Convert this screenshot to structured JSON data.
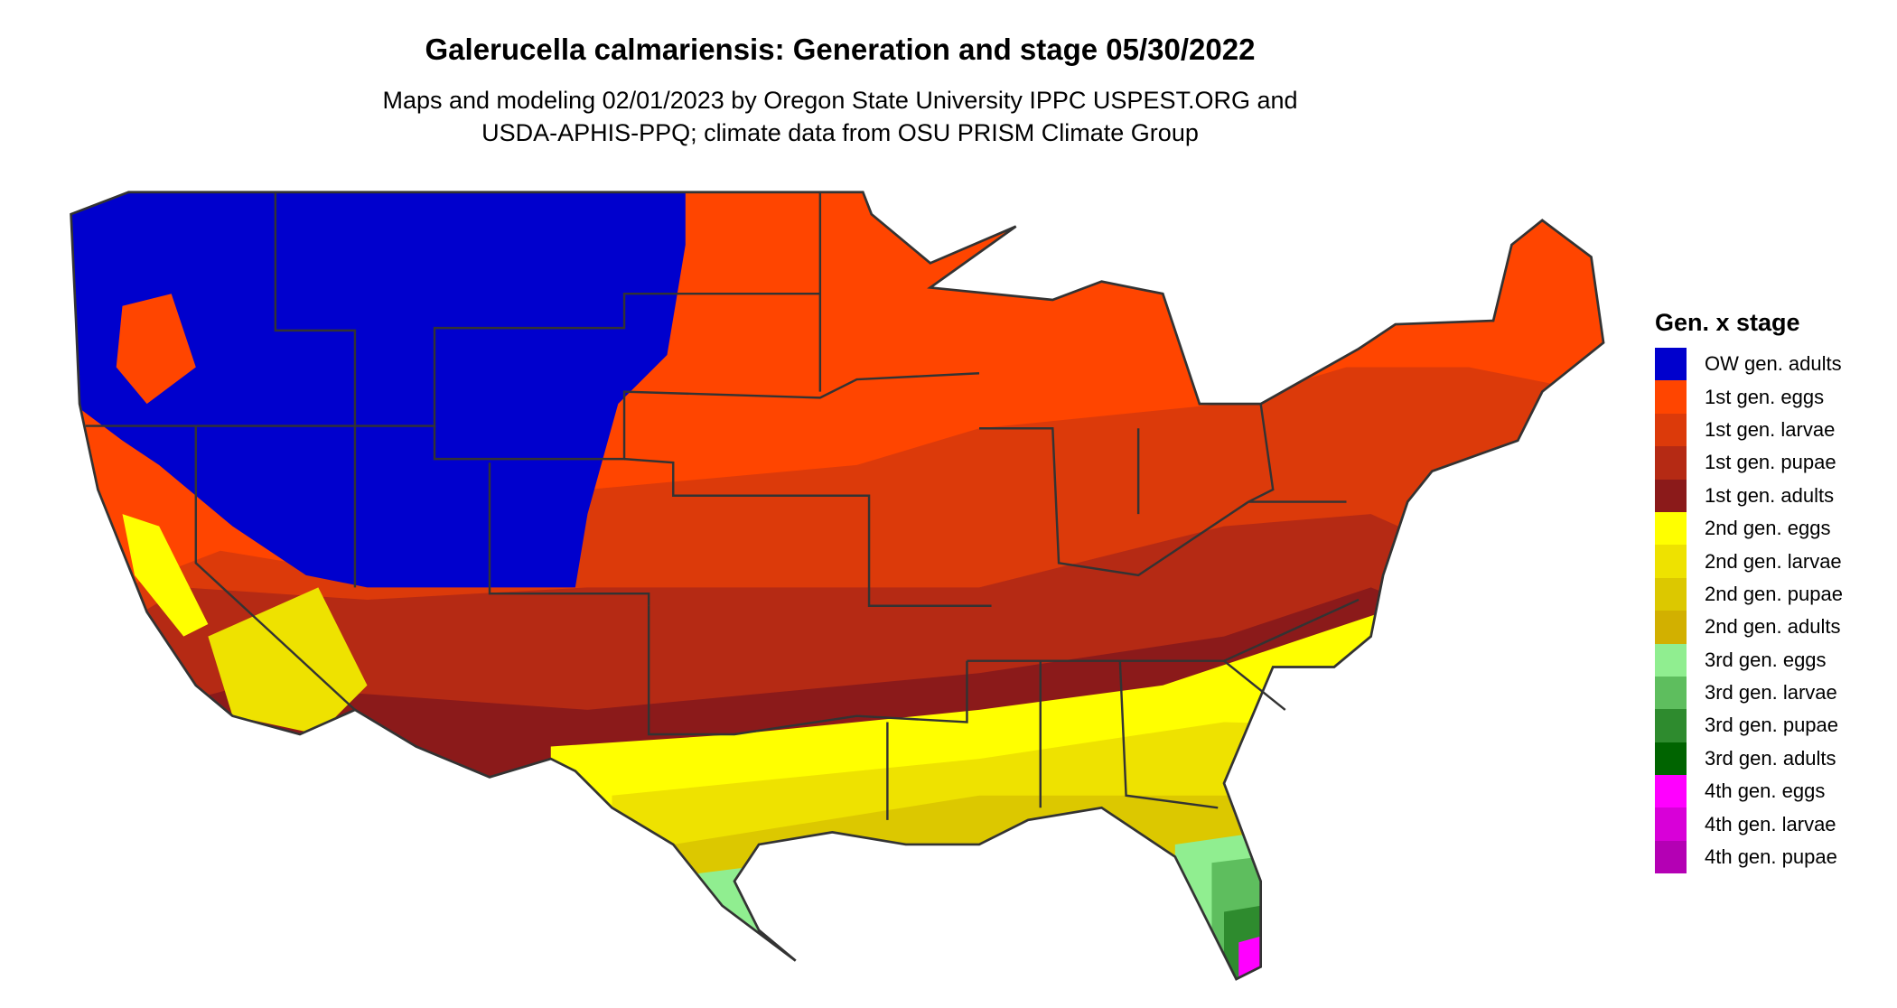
{
  "title": "Galerucella calmariensis: Generation and stage 05/30/2022",
  "subtitle_line1": "Maps and modeling 02/01/2023 by Oregon State University IPPC USPEST.ORG and",
  "subtitle_line2": "USDA-APHIS-PPQ; climate data from OSU PRISM Climate Group",
  "legend": {
    "title": "Gen. x stage",
    "items": [
      {
        "label": "OW gen. adults",
        "color": "#0000cd"
      },
      {
        "label": "1st gen. eggs",
        "color": "#ff4500"
      },
      {
        "label": "1st gen. larvae",
        "color": "#dc3a0a"
      },
      {
        "label": "1st gen. pupae",
        "color": "#b52a14"
      },
      {
        "label": "1st gen. adults",
        "color": "#8b1a1a"
      },
      {
        "label": "2nd gen. eggs",
        "color": "#ffff00"
      },
      {
        "label": "2nd gen. larvae",
        "color": "#eee200"
      },
      {
        "label": "2nd gen. pupae",
        "color": "#dcc800"
      },
      {
        "label": "2nd gen. adults",
        "color": "#d2b000"
      },
      {
        "label": "3rd gen. eggs",
        "color": "#90ee90"
      },
      {
        "label": "3rd gen. larvae",
        "color": "#5ebe5e"
      },
      {
        "label": "3rd gen. pupae",
        "color": "#2e8b2e"
      },
      {
        "label": "3rd gen. adults",
        "color": "#006400"
      },
      {
        "label": "4th gen. eggs",
        "color": "#ff00ff"
      },
      {
        "label": "4th gen. larvae",
        "color": "#d800d8"
      },
      {
        "label": "4th gen. pupae",
        "color": "#b400b4"
      }
    ]
  }
}
